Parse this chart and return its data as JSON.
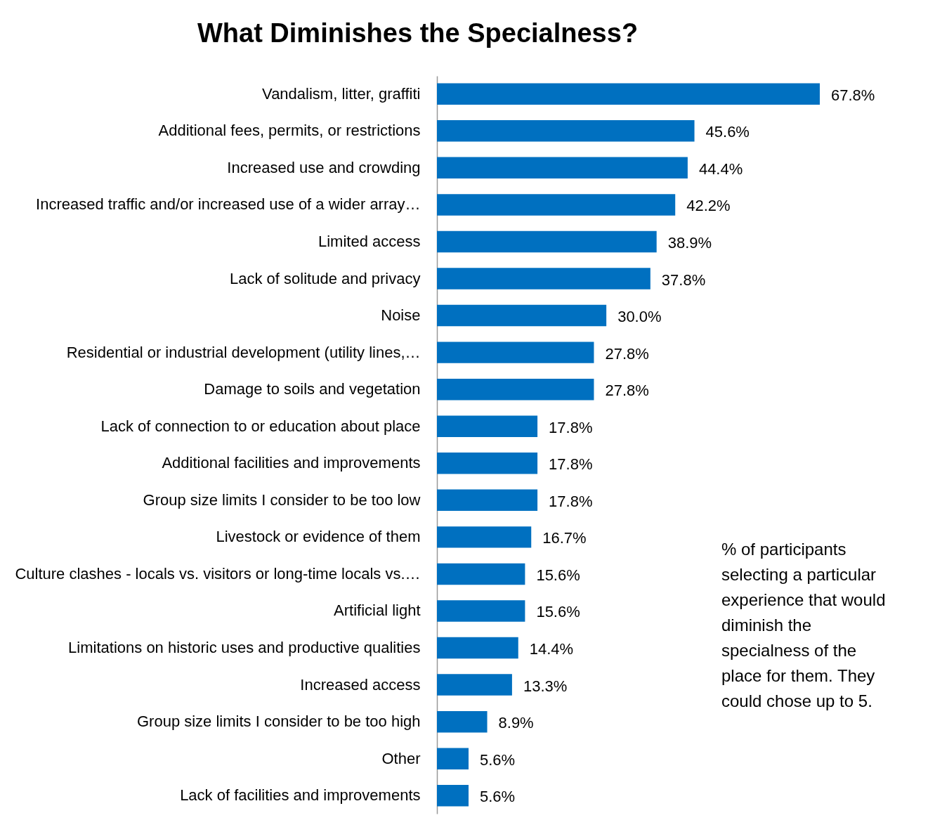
{
  "chart_data": {
    "type": "bar",
    "orientation": "horizontal",
    "title": "What Diminishes the Specialness?",
    "categories": [
      "Vandalism, litter, graffiti",
      "Additional fees, permits, or restrictions",
      "Increased use and crowding",
      "Increased traffic and/or increased use of a wider array…",
      "Limited access",
      "Lack of solitude and privacy",
      "Noise",
      "Residential or industrial development (utility lines,…",
      "Damage to soils and vegetation",
      "Lack of connection to or education about place",
      "Additional facilities and improvements",
      "Group size limits I consider to be too low",
      "Livestock or evidence of them",
      "Culture clashes - locals vs. visitors or long-time locals vs.…",
      "Artificial light",
      "Limitations on historic uses and productive qualities",
      "Increased access",
      "Group size limits I consider to be too high",
      "Other",
      "Lack of facilities and improvements"
    ],
    "values": [
      67.8,
      45.6,
      44.4,
      42.2,
      38.9,
      37.8,
      30.0,
      27.8,
      27.8,
      17.8,
      17.8,
      17.8,
      16.7,
      15.6,
      15.6,
      14.4,
      13.3,
      8.9,
      5.6,
      5.6
    ],
    "value_labels": [
      "67.8%",
      "45.6%",
      "44.4%",
      "42.2%",
      "38.9%",
      "37.8%",
      "30.0%",
      "27.8%",
      "27.8%",
      "17.8%",
      "17.8%",
      "17.8%",
      "16.7%",
      "15.6%",
      "15.6%",
      "14.4%",
      "13.3%",
      "8.9%",
      "5.6%",
      "5.6%"
    ],
    "color": "#0070c0",
    "annotations": [
      "% of participants selecting a particular experience that would diminish the specialness of the place for them. They could chose up to 5."
    ]
  }
}
